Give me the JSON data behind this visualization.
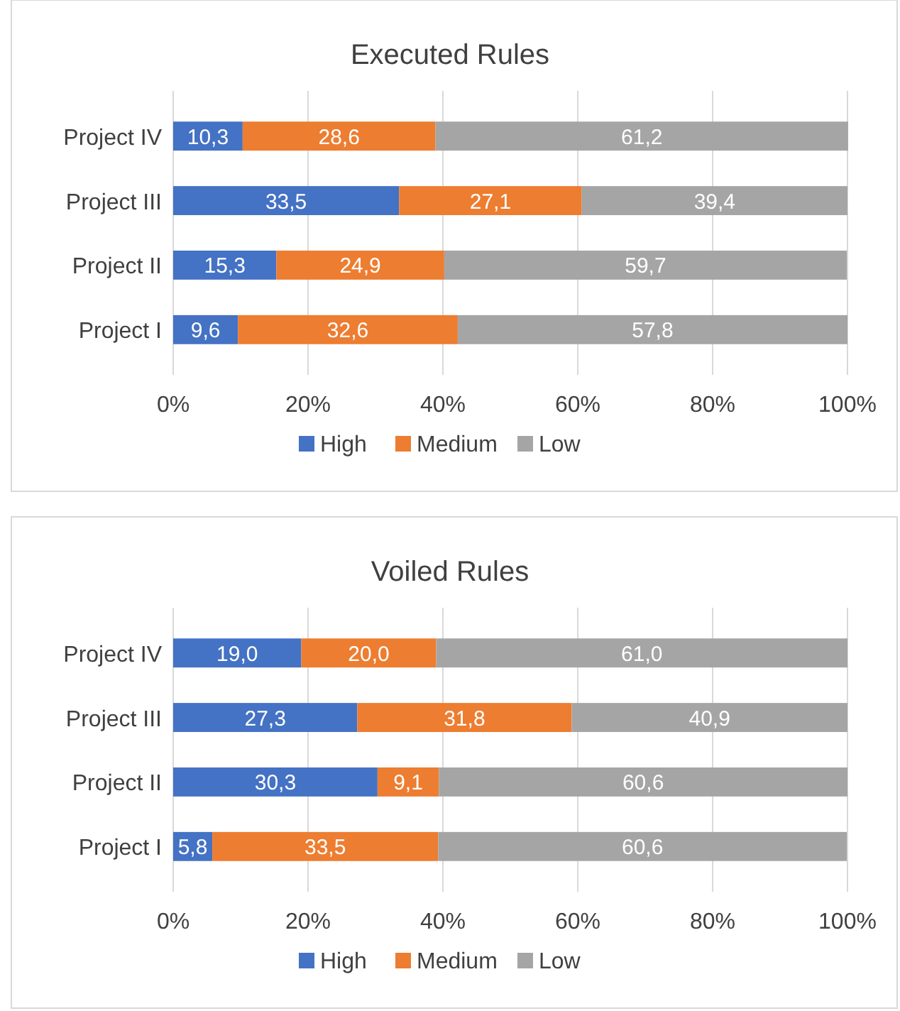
{
  "chart_data": [
    {
      "type": "bar",
      "title": "Executed Rules",
      "orientation": "horizontal",
      "stacked": true,
      "categories": [
        "Project IV",
        "Project III",
        "Project II",
        "Project I"
      ],
      "xlim": [
        0,
        100
      ],
      "xticks": [
        {
          "value": 0,
          "label": "0%"
        },
        {
          "value": 20,
          "label": "20%"
        },
        {
          "value": 40,
          "label": "40%"
        },
        {
          "value": 60,
          "label": "60%"
        },
        {
          "value": 80,
          "label": "80%"
        },
        {
          "value": 100,
          "label": "100%"
        }
      ],
      "grid": "x",
      "legend": "bottom",
      "series": [
        {
          "name": "High",
          "color": "#4472c4",
          "values": [
            10.3,
            33.5,
            15.3,
            9.6
          ],
          "value_labels": [
            "10,3",
            "33,5",
            "15,3",
            "9,6"
          ]
        },
        {
          "name": "Medium",
          "color": "#ed7d31",
          "values": [
            28.6,
            27.1,
            24.9,
            32.6
          ],
          "value_labels": [
            "28,6",
            "27,1",
            "24,9",
            "32,6"
          ]
        },
        {
          "name": "Low",
          "color": "#a5a5a5",
          "values": [
            61.2,
            39.4,
            59.7,
            57.8
          ],
          "value_labels": [
            "61,2",
            "39,4",
            "59,7",
            "57,8"
          ]
        }
      ]
    },
    {
      "type": "bar",
      "title": "Voiled Rules",
      "orientation": "horizontal",
      "stacked": true,
      "categories": [
        "Project IV",
        "Project III",
        "Project II",
        "Project I"
      ],
      "xlim": [
        0,
        100
      ],
      "xticks": [
        {
          "value": 0,
          "label": "0%"
        },
        {
          "value": 20,
          "label": "20%"
        },
        {
          "value": 40,
          "label": "40%"
        },
        {
          "value": 60,
          "label": "60%"
        },
        {
          "value": 80,
          "label": "80%"
        },
        {
          "value": 100,
          "label": "100%"
        }
      ],
      "grid": "x",
      "legend": "bottom",
      "series": [
        {
          "name": "High",
          "color": "#4472c4",
          "values": [
            19.0,
            27.3,
            30.3,
            5.8
          ],
          "value_labels": [
            "19,0",
            "27,3",
            "30,3",
            "5,8"
          ]
        },
        {
          "name": "Medium",
          "color": "#ed7d31",
          "values": [
            20.0,
            31.8,
            9.1,
            33.5
          ],
          "value_labels": [
            "20,0",
            "31,8",
            "9,1",
            "33,5"
          ]
        },
        {
          "name": "Low",
          "color": "#a5a5a5",
          "values": [
            61.0,
            40.9,
            60.6,
            60.6
          ],
          "value_labels": [
            "61,0",
            "40,9",
            "60,6",
            "60,6"
          ]
        }
      ]
    }
  ]
}
